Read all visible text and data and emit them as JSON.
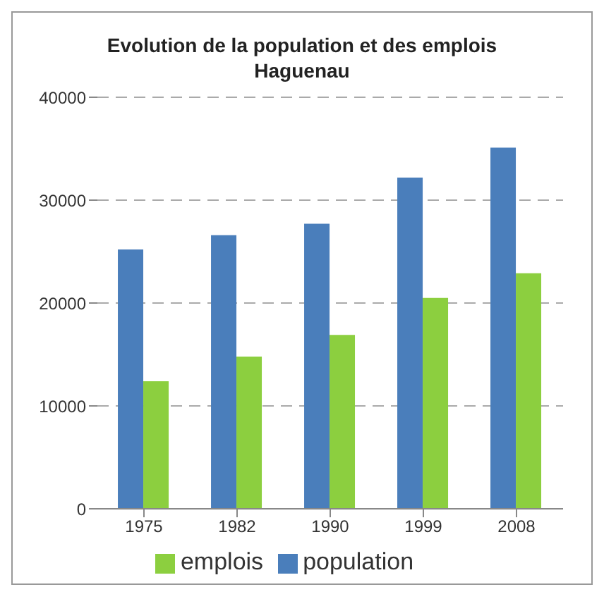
{
  "chart_data": {
    "type": "bar",
    "title": "Evolution de la population et des emplois",
    "subtitle": "Haguenau",
    "categories": [
      "1975",
      "1982",
      "1990",
      "1999",
      "2008"
    ],
    "series": [
      {
        "name": "population",
        "color": "#4a7ebb",
        "values": [
          25200,
          26600,
          27700,
          32200,
          35100
        ]
      },
      {
        "name": "emplois",
        "color": "#8ccf3f",
        "values": [
          12400,
          14800,
          16900,
          20500,
          22900
        ]
      }
    ],
    "ylim": [
      0,
      40000
    ],
    "yticks": [
      0,
      10000,
      20000,
      30000,
      40000
    ],
    "grid": "y",
    "legend": "bottom"
  }
}
